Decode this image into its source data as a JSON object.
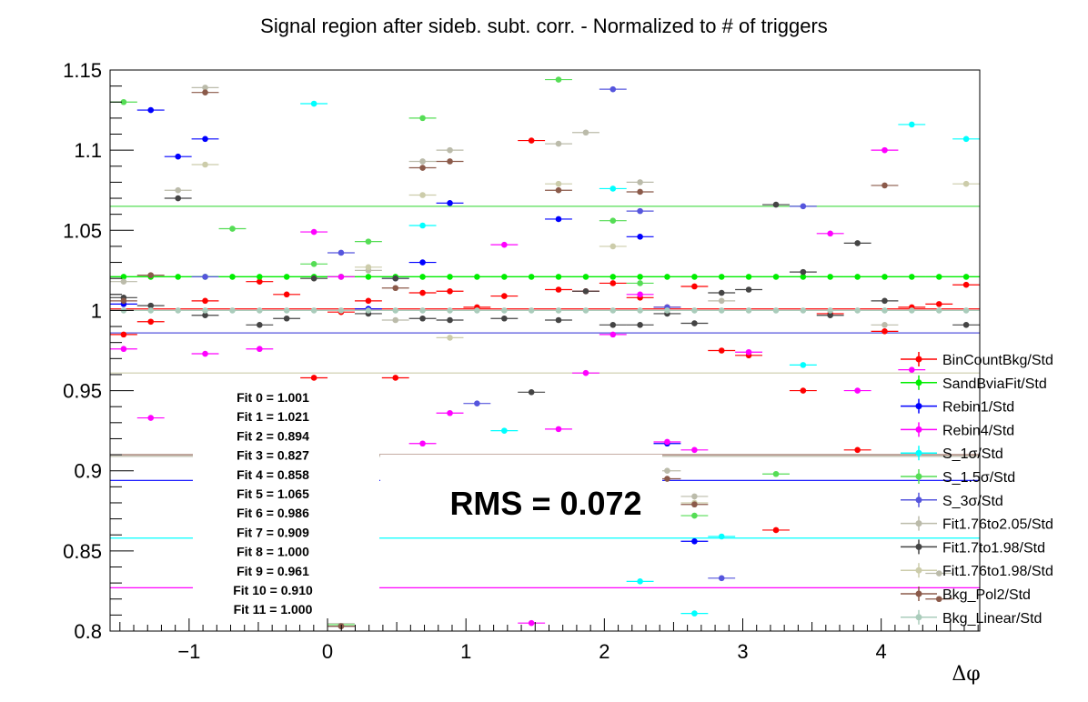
{
  "chart_data": {
    "type": "scatter",
    "title": "Signal region after sideb. subt. corr. - Normalized to # of triggers",
    "xlabel": "Δφ",
    "ylabel": "",
    "xlim": [
      -1.571,
      4.712
    ],
    "ylim": [
      0.8,
      1.15
    ],
    "x_ticks": [
      -1,
      0,
      1,
      2,
      3,
      4
    ],
    "x_tick_labels": [
      "−1",
      "0",
      "1",
      "2",
      "3",
      "4"
    ],
    "y_ticks": [
      0.8,
      0.85,
      0.9,
      0.95,
      1.0,
      1.05,
      1.1,
      1.15
    ],
    "y_tick_labels": [
      "0.8",
      "0.85",
      "0.9",
      "0.95",
      "1",
      "1.05",
      "1.1",
      "1.15"
    ],
    "grid": false,
    "legend_position": "bottom-right",
    "bin_half_width": 0.0982,
    "x": [
      -1.473,
      -1.277,
      -1.08,
      -0.884,
      -0.687,
      -0.491,
      -0.295,
      -0.098,
      0.098,
      0.295,
      0.491,
      0.687,
      0.884,
      1.08,
      1.277,
      1.473,
      1.669,
      1.866,
      2.062,
      2.258,
      2.454,
      2.651,
      2.847,
      3.043,
      3.24,
      3.436,
      3.632,
      3.829,
      4.025,
      4.221,
      4.418,
      4.614
    ],
    "series": [
      {
        "name": "BinCountBkg/Std",
        "color": "#ff0000",
        "fit": 1.001,
        "values": [
          0.985,
          0.993,
          null,
          1.006,
          null,
          1.018,
          1.01,
          0.958,
          0.999,
          1.006,
          0.958,
          1.011,
          1.012,
          1.002,
          1.009,
          1.106,
          1.013,
          1.012,
          1.017,
          1.008,
          1.002,
          1.015,
          0.975,
          0.972,
          0.863,
          0.95,
          0.998,
          0.913,
          0.987,
          1.002,
          1.004,
          1.016
        ]
      },
      {
        "name": "SandBviaFit/Std",
        "color": "#00ee00",
        "fit": 1.021,
        "values": [
          1.021,
          1.021,
          1.021,
          1.021,
          1.021,
          1.021,
          1.021,
          1.021,
          1.021,
          1.021,
          1.021,
          1.021,
          1.021,
          1.021,
          1.021,
          1.021,
          1.021,
          1.021,
          1.021,
          1.021,
          1.021,
          1.021,
          1.021,
          1.021,
          1.021,
          1.021,
          1.021,
          1.021,
          1.021,
          1.021,
          1.021,
          1.021
        ]
      },
      {
        "name": "Rebin1/Std",
        "color": "#0000ff",
        "fit": 0.894,
        "values": [
          1.004,
          1.125,
          1.096,
          1.107,
          null,
          null,
          null,
          null,
          null,
          1.001,
          0.861,
          1.03,
          1.067,
          null,
          null,
          null,
          1.057,
          null,
          null,
          1.046,
          0.917,
          0.856,
          null,
          null,
          null,
          null,
          null,
          null,
          null,
          null,
          null,
          null
        ]
      },
      {
        "name": "Rebin4/Std",
        "color": "#ff00ff",
        "fit": 0.827,
        "values": [
          0.976,
          0.933,
          null,
          0.973,
          null,
          0.976,
          null,
          1.049,
          1.021,
          null,
          0.877,
          0.917,
          0.936,
          0.907,
          1.041,
          0.805,
          0.926,
          0.961,
          0.985,
          1.01,
          0.918,
          0.913,
          null,
          0.974,
          null,
          null,
          1.048,
          0.95,
          1.1,
          0.963,
          null,
          null
        ]
      },
      {
        "name": "S_1σ/Std",
        "color": "#00ffff",
        "fit": 0.858,
        "values": [
          null,
          null,
          null,
          null,
          null,
          null,
          null,
          1.129,
          null,
          null,
          null,
          1.053,
          null,
          null,
          0.925,
          null,
          null,
          null,
          1.076,
          0.831,
          null,
          0.811,
          0.859,
          null,
          null,
          0.966,
          null,
          null,
          null,
          1.116,
          null,
          1.107
        ]
      },
      {
        "name": "S_1.5σ/Std",
        "color": "#55dd55",
        "fit": 1.065,
        "values": [
          1.13,
          null,
          null,
          null,
          1.051,
          null,
          null,
          1.029,
          0.804,
          1.043,
          null,
          1.12,
          null,
          null,
          null,
          null,
          1.144,
          null,
          1.056,
          1.017,
          null,
          0.872,
          null,
          null,
          0.898,
          null,
          null,
          null,
          null,
          null,
          null,
          null
        ]
      },
      {
        "name": "S_3σ/Std",
        "color": "#5555dd",
        "fit": 0.986,
        "values": [
          null,
          null,
          null,
          1.021,
          null,
          null,
          null,
          null,
          1.036,
          null,
          1.02,
          0.905,
          null,
          0.942,
          null,
          null,
          null,
          null,
          1.138,
          1.062,
          1.002,
          null,
          0.833,
          null,
          null,
          1.065,
          null,
          null,
          null,
          null,
          null,
          null
        ]
      },
      {
        "name": "Fit1.76to2.05/Std",
        "color": "#bbbbaa",
        "fit": 0.909,
        "values": [
          1.018,
          null,
          1.075,
          1.139,
          null,
          null,
          null,
          1.02,
          0.805,
          1.025,
          0.994,
          1.093,
          1.1,
          null,
          null,
          0.905,
          1.104,
          1.111,
          null,
          1.08,
          0.9,
          0.884,
          1.006,
          null,
          null,
          null,
          null,
          null,
          0.991,
          null,
          0.836,
          null
        ]
      },
      {
        "name": "Fit1.7to1.98/Std",
        "color": "#444444",
        "fit": 1.0,
        "values": [
          1.008,
          1.003,
          1.07,
          0.997,
          null,
          0.991,
          0.995,
          1.02,
          0.803,
          0.998,
          1.02,
          0.995,
          0.994,
          null,
          0.995,
          0.949,
          0.994,
          1.012,
          0.991,
          0.991,
          0.998,
          0.992,
          1.011,
          1.013,
          1.066,
          1.024,
          0.997,
          1.042,
          1.006,
          null,
          null,
          0.991
        ]
      },
      {
        "name": "Fit1.76to1.98/Std",
        "color": "#ccccaa",
        "fit": 0.961,
        "values": [
          null,
          null,
          null,
          1.091,
          null,
          null,
          null,
          0.808,
          null,
          1.027,
          null,
          1.072,
          0.983,
          null,
          null,
          null,
          1.079,
          null,
          1.04,
          null,
          null,
          0.88,
          null,
          null,
          null,
          null,
          null,
          null,
          null,
          null,
          null,
          1.079
        ]
      },
      {
        "name": "Bkg_Pol2/Std",
        "color": "#8b5a4a",
        "fit": 0.91,
        "values": [
          1.006,
          1.022,
          null,
          1.136,
          null,
          null,
          null,
          null,
          0.803,
          null,
          1.014,
          1.089,
          1.093,
          null,
          null,
          null,
          1.075,
          null,
          null,
          1.074,
          0.895,
          0.879,
          null,
          null,
          null,
          null,
          null,
          null,
          1.078,
          null,
          0.82,
          null
        ]
      },
      {
        "name": "Bkg_Linear/Std",
        "color": "#aaccbb",
        "fit": 1.0,
        "values": [
          1.0,
          1.0,
          1.0,
          1.0,
          1.0,
          1.0,
          1.0,
          1.0,
          1.0,
          1.0,
          1.0,
          1.0,
          1.0,
          1.0,
          1.0,
          1.0,
          1.0,
          1.0,
          1.0,
          1.0,
          1.0,
          1.0,
          1.0,
          1.0,
          1.0,
          1.0,
          1.0,
          1.0,
          1.0,
          1.0,
          1.0,
          1.0
        ]
      }
    ],
    "fit_labels": [
      "Fit 0 = 1.001",
      "Fit 1 = 1.021",
      "Fit 2 = 0.894",
      "Fit 3 = 0.827",
      "Fit 4 = 0.858",
      "Fit 5 = 1.065",
      "Fit 6 = 0.986",
      "Fit 7 = 0.909",
      "Fit 8 = 1.000",
      "Fit 9 = 0.961",
      "Fit 10 = 0.910",
      "Fit 11 = 1.000"
    ],
    "rms_label": "RMS = 0.072"
  }
}
